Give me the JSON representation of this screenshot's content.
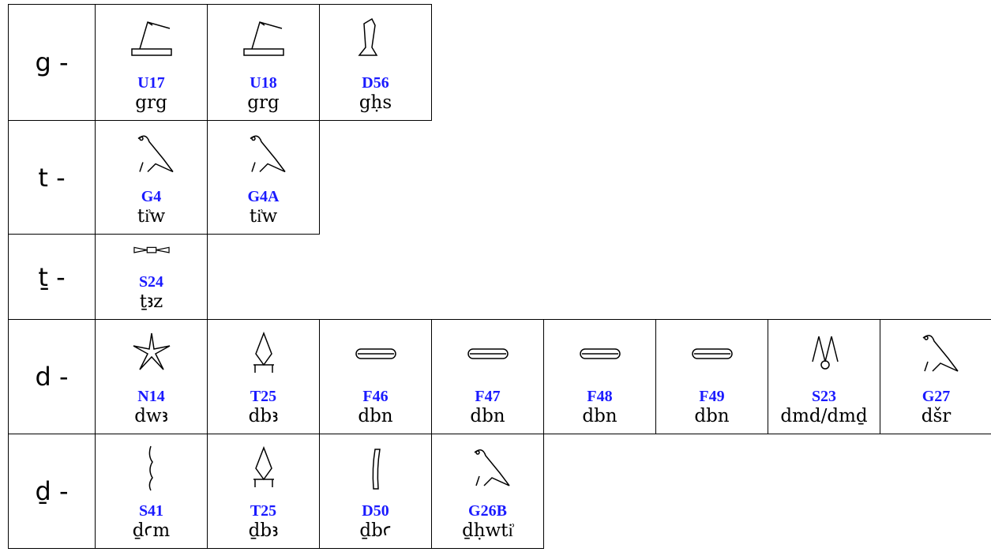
{
  "rows": [
    {
      "label": "g -",
      "cells": [
        {
          "code": "U17",
          "translit": "grg"
        },
        {
          "code": "U18",
          "translit": "grg"
        },
        {
          "code": "D56",
          "translit": "gḥs"
        }
      ]
    },
    {
      "label": "t -",
      "cells": [
        {
          "code": "G4",
          "translit": "ti͗w"
        },
        {
          "code": "G4A",
          "translit": "ti͗w"
        }
      ]
    },
    {
      "label": "ṯ -",
      "cells": [
        {
          "code": "S24",
          "translit": "ṯꜣz"
        }
      ]
    },
    {
      "label": "d -",
      "cells": [
        {
          "code": "N14",
          "translit": "dwꜣ"
        },
        {
          "code": "T25",
          "translit": "dbꜣ"
        },
        {
          "code": "F46",
          "translit": "dbn"
        },
        {
          "code": "F47",
          "translit": "dbn"
        },
        {
          "code": "F48",
          "translit": "dbn"
        },
        {
          "code": "F49",
          "translit": "dbn"
        },
        {
          "code": "S23",
          "translit": "dmd/dmḏ"
        },
        {
          "code": "G27",
          "translit": "dšr"
        }
      ]
    },
    {
      "label": "ḏ -",
      "cells": [
        {
          "code": "S41",
          "translit": "ḏꜥm"
        },
        {
          "code": "T25",
          "translit": "ḏbꜣ"
        },
        {
          "code": "D50",
          "translit": "ḏbꜥ"
        },
        {
          "code": "G26B",
          "translit": "ḏḥwti͗"
        }
      ]
    }
  ]
}
